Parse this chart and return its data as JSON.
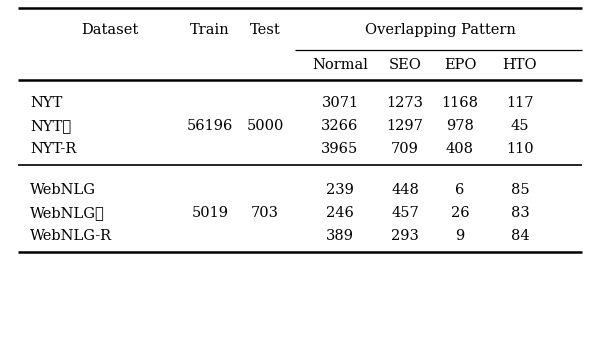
{
  "header1_cols": [
    "Dataset",
    "Train",
    "Test",
    "Overlapping Pattern"
  ],
  "header2_cols": [
    "Normal",
    "SEO",
    "EPO",
    "HTO"
  ],
  "rows": [
    [
      "NYT",
      "",
      "",
      "3071",
      "1273",
      "1168",
      "117"
    ],
    [
      "NYT⋆",
      "56196",
      "5000",
      "3266",
      "1297",
      "978",
      "45"
    ],
    [
      "NYT-R",
      "",
      "",
      "3965",
      "709",
      "408",
      "110"
    ],
    [
      "WebNLG",
      "",
      "",
      "239",
      "448",
      "6",
      "85"
    ],
    [
      "WebNLG⋆",
      "5019",
      "703",
      "246",
      "457",
      "26",
      "83"
    ],
    [
      "WebNLG-R",
      "",
      "",
      "389",
      "293",
      "9",
      "84"
    ]
  ],
  "background_color": "#ffffff",
  "text_color": "#000000",
  "fontsize": 10.5,
  "line_color": "#000000"
}
